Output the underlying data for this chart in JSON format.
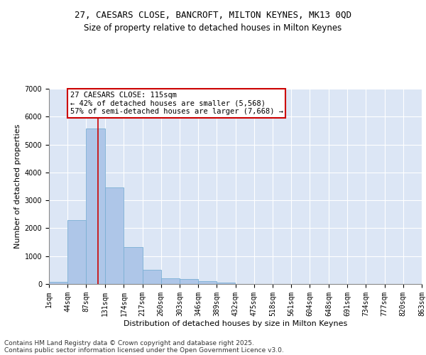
{
  "title_line1": "27, CAESARS CLOSE, BANCROFT, MILTON KEYNES, MK13 0QD",
  "title_line2": "Size of property relative to detached houses in Milton Keynes",
  "xlabel": "Distribution of detached houses by size in Milton Keynes",
  "ylabel": "Number of detached properties",
  "bins": [
    "1sqm",
    "44sqm",
    "87sqm",
    "131sqm",
    "174sqm",
    "217sqm",
    "260sqm",
    "303sqm",
    "346sqm",
    "389sqm",
    "432sqm",
    "475sqm",
    "518sqm",
    "561sqm",
    "604sqm",
    "648sqm",
    "691sqm",
    "734sqm",
    "777sqm",
    "820sqm",
    "863sqm"
  ],
  "bin_edges": [
    1,
    44,
    87,
    131,
    174,
    217,
    260,
    303,
    346,
    389,
    432,
    475,
    518,
    561,
    604,
    648,
    691,
    734,
    777,
    820,
    863
  ],
  "values": [
    75,
    2300,
    5580,
    3450,
    1320,
    510,
    210,
    175,
    90,
    55,
    0,
    0,
    0,
    0,
    0,
    0,
    0,
    0,
    0,
    0
  ],
  "bar_color": "#aec6e8",
  "bar_edge_color": "#7aafd4",
  "background_color": "#dce6f5",
  "grid_color": "#ffffff",
  "vline_x": 115,
  "vline_color": "#cc0000",
  "annotation_text": "27 CAESARS CLOSE: 115sqm\n← 42% of detached houses are smaller (5,568)\n57% of semi-detached houses are larger (7,668) →",
  "annotation_box_color": "white",
  "annotation_box_edge_color": "#cc0000",
  "ylim": [
    0,
    7000
  ],
  "yticks": [
    0,
    1000,
    2000,
    3000,
    4000,
    5000,
    6000,
    7000
  ],
  "footer_line1": "Contains HM Land Registry data © Crown copyright and database right 2025.",
  "footer_line2": "Contains public sector information licensed under the Open Government Licence v3.0.",
  "title_fontsize": 9,
  "subtitle_fontsize": 8.5,
  "axis_label_fontsize": 8,
  "tick_fontsize": 7,
  "annotation_fontsize": 7.5,
  "footer_fontsize": 6.5
}
